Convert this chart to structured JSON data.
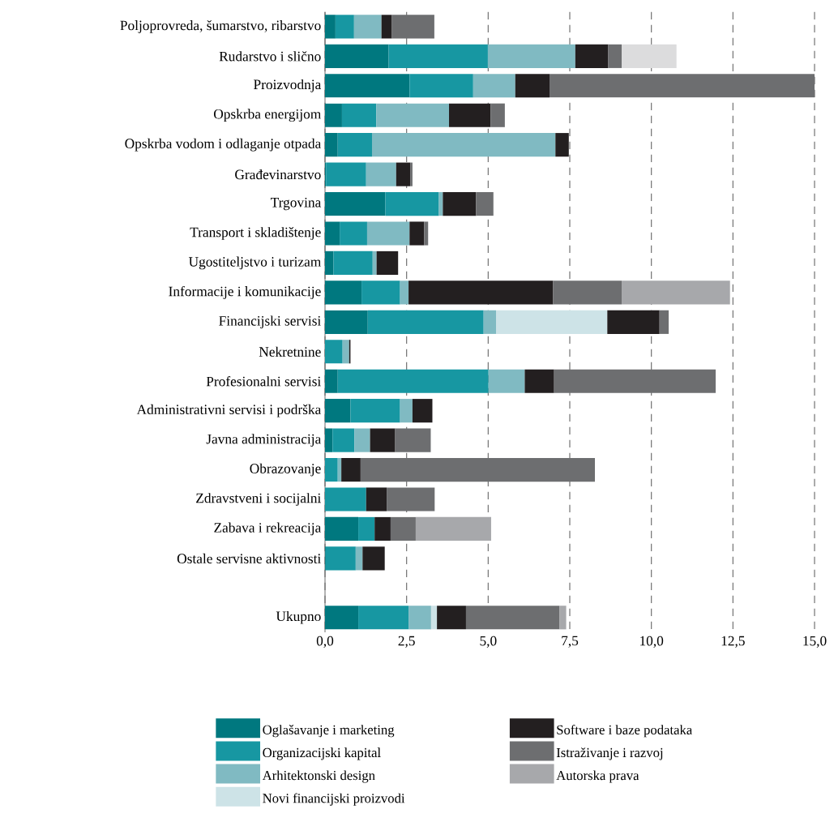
{
  "chart_data": {
    "type": "bar",
    "orientation": "horizontal",
    "stacked": true,
    "categories": [
      "Poljoprovreda, šumarstvo, ribarstvo",
      "Rudarstvo i slično",
      "Proizvodnja",
      "Opskrba energijom",
      "Opskrba vodom i odlaganje otpada",
      "Građevinarstvo",
      "Trgovina",
      "Transport i skladištenje",
      "Ugostiteljstvo i turizam",
      "Informacije i komunikacije",
      "Financijski servisi",
      "Nekretnine",
      "Profesionalni servisi",
      "Administrativni servisi i podrška",
      "Javna administracija",
      "Obrazovanje",
      "Zdravstveni i socijalni",
      "Zabava i rekreacija",
      "Ostale servisne aktivnosti",
      null,
      "Ukupno"
    ],
    "series": [
      {
        "name": "Oglašavanje i marketing",
        "color": "#00787f",
        "values": [
          0.32,
          1.95,
          2.59,
          0.52,
          0.39,
          0.03,
          1.85,
          0.45,
          0.26,
          1.12,
          1.31,
          null,
          0.39,
          0.78,
          0.23,
          null,
          null,
          1.02,
          0.02,
          null,
          1.02
        ]
      },
      {
        "name": "Organizacijski kapital",
        "color": "#1797a2",
        "values": [
          0.57,
          3.04,
          1.95,
          1.05,
          1.05,
          1.23,
          1.64,
          0.84,
          1.2,
          1.18,
          3.55,
          0.54,
          4.62,
          1.52,
          0.67,
          0.39,
          1.26,
          0.5,
          0.92,
          null,
          1.54
        ]
      },
      {
        "name": "Arhitektonski design",
        "color": "#80bac2",
        "values": [
          0.84,
          2.68,
          1.29,
          2.23,
          5.62,
          0.92,
          0.12,
          1.3,
          0.12,
          0.26,
          0.38,
          0.2,
          1.11,
          0.38,
          0.48,
          0.11,
          null,
          null,
          0.21,
          null,
          0.69
        ]
      },
      {
        "name": "Novi financijski proizvodi",
        "color": "#cde3e7",
        "values": [
          null,
          null,
          null,
          null,
          null,
          null,
          null,
          null,
          null,
          null,
          3.41,
          null,
          null,
          null,
          null,
          null,
          null,
          null,
          null,
          null,
          0.18
        ]
      },
      {
        "name": "Software i baze podataka",
        "color": "#231f20",
        "values": [
          0.32,
          1.01,
          1.05,
          1.27,
          0.41,
          0.43,
          1.02,
          0.45,
          0.66,
          4.43,
          1.6,
          0.04,
          0.9,
          0.61,
          0.77,
          0.59,
          0.63,
          0.49,
          0.68,
          null,
          0.89
        ]
      },
      {
        "name": "Istraživanje i razvoj",
        "color": "#6d6e70",
        "values": [
          1.3,
          0.41,
          8.13,
          0.44,
          null,
          0.07,
          0.53,
          0.12,
          null,
          2.1,
          0.28,
          null,
          4.95,
          null,
          1.09,
          7.18,
          1.47,
          0.77,
          null,
          null,
          2.86
        ]
      },
      {
        "name": "Autorska prava",
        "color": "#a7a8ab",
        "colors": [
          null,
          "#dcdcdd",
          null,
          null,
          null,
          null,
          null,
          null,
          null,
          "#a7a8ab",
          null,
          null,
          null,
          null,
          null,
          null,
          null,
          "#a7a8ab",
          null,
          null,
          "#a7a8ab"
        ],
        "values": [
          null,
          1.68,
          null,
          null,
          null,
          null,
          null,
          null,
          null,
          3.32,
          null,
          null,
          null,
          null,
          null,
          null,
          null,
          2.31,
          null,
          null,
          0.21
        ]
      }
    ],
    "xlim": [
      0,
      15
    ],
    "xticks": [
      {
        "value": 0,
        "label": "0,0"
      },
      {
        "value": 2.5,
        "label": "2,5"
      },
      {
        "value": 5,
        "label": "5,0"
      },
      {
        "value": 7.5,
        "label": "7,5"
      },
      {
        "value": 10,
        "label": "10,0"
      },
      {
        "value": 12.5,
        "label": "12,5"
      },
      {
        "value": 15,
        "label": "15,0"
      }
    ],
    "grid": "x",
    "legend": "bottom"
  }
}
